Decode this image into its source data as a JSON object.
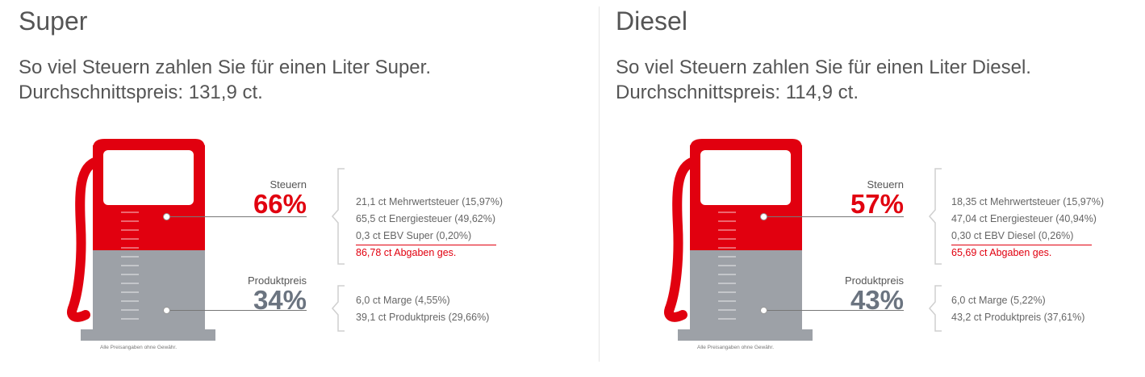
{
  "colors": {
    "tax_red": "#e1000f",
    "product_grey": "#6b7480",
    "pump_grey": "#9da1a7",
    "text": "#555555"
  },
  "chart_data": [
    {
      "type": "infographic",
      "fuel": "Super",
      "title": "Super",
      "subtitle_line1": "So viel Steuern zahlen Sie für einen Liter Super.",
      "subtitle_line2": "Durchschnittspreis: 131,9 ct.",
      "average_price_ct": 131.9,
      "segments": [
        {
          "label": "Steuern",
          "percent": 66,
          "percent_label": "66%",
          "items": [
            {
              "text": "21,1 ct Mehrwertsteuer (15,97%)",
              "value_ct": 21.1,
              "share_pct": 15.97
            },
            {
              "text": "65,5 ct Energiesteuer (49,62%)",
              "value_ct": 65.5,
              "share_pct": 49.62
            },
            {
              "text": "0,3 ct EBV Super (0,20%)",
              "value_ct": 0.3,
              "share_pct": 0.2
            }
          ],
          "total_text": "86,78 ct Abgaben ges.",
          "total_ct": 86.78
        },
        {
          "label": "Produktpreis",
          "percent": 34,
          "percent_label": "34%",
          "items": [
            {
              "text": "6,0 ct Marge (4,55%)",
              "value_ct": 6.0,
              "share_pct": 4.55
            },
            {
              "text": "39,1 ct Produktpreis (29,66%)",
              "value_ct": 39.1,
              "share_pct": 29.66
            }
          ]
        }
      ],
      "disclaimer": "Alle Preisangaben ohne Gewähr."
    },
    {
      "type": "infographic",
      "fuel": "Diesel",
      "title": "Diesel",
      "subtitle_line1": "So viel Steuern zahlen Sie für einen Liter Diesel.",
      "subtitle_line2": "Durchschnittspreis: 114,9 ct.",
      "average_price_ct": 114.9,
      "segments": [
        {
          "label": "Steuern",
          "percent": 57,
          "percent_label": "57%",
          "items": [
            {
              "text": "18,35 ct Mehrwertsteuer (15,97%)",
              "value_ct": 18.35,
              "share_pct": 15.97
            },
            {
              "text": "47,04 ct Energiesteuer (40,94%)",
              "value_ct": 47.04,
              "share_pct": 40.94
            },
            {
              "text": "0,30 ct EBV Diesel (0,26%)",
              "value_ct": 0.3,
              "share_pct": 0.26
            }
          ],
          "total_text": "65,69 ct Abgaben ges.",
          "total_ct": 65.69
        },
        {
          "label": "Produktpreis",
          "percent": 43,
          "percent_label": "43%",
          "items": [
            {
              "text": "6,0 ct Marge (5,22%)",
              "value_ct": 6.0,
              "share_pct": 5.22
            },
            {
              "text": "43,2 ct Produktpreis (37,61%)",
              "value_ct": 43.2,
              "share_pct": 37.61
            }
          ]
        }
      ],
      "disclaimer": "Alle Preisangaben ohne Gewähr."
    }
  ]
}
